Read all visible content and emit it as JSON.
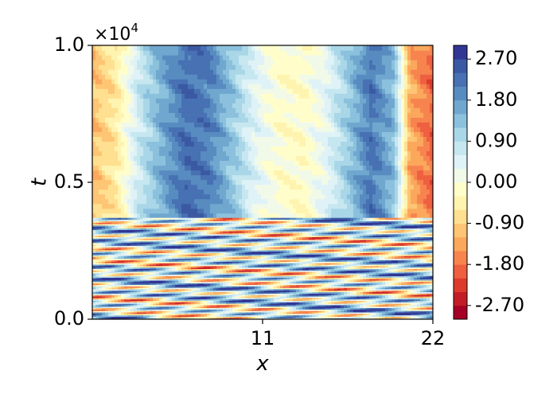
{
  "chart_data": {
    "type": "heatmap",
    "title": "",
    "xlabel": "x",
    "ylabel": "t",
    "xlim": [
      0,
      22
    ],
    "ylim": [
      0,
      10000
    ],
    "x_ticks": [
      {
        "value": 11,
        "label": "11"
      },
      {
        "value": 22,
        "label": "22"
      }
    ],
    "y_ticks": [
      {
        "value": 0.0,
        "label": "0.0"
      },
      {
        "value": 0.5,
        "label": "0.5"
      },
      {
        "value": 1.0,
        "label": "1.0"
      }
    ],
    "y_multiplier": {
      "base": "×10",
      "exponent": "4"
    },
    "transition_t": 3700,
    "colorbar": {
      "colormap": "RdYlBu",
      "vmin": -3.0,
      "vmax": 3.0,
      "levels": 20,
      "ticks": [
        {
          "value": 2.7,
          "label": "2.70"
        },
        {
          "value": 1.8,
          "label": "1.80"
        },
        {
          "value": 0.9,
          "label": "0.90"
        },
        {
          "value": 0.0,
          "label": "0.00"
        },
        {
          "value": -0.9,
          "label": "-0.90"
        },
        {
          "value": -1.8,
          "label": "-1.80"
        },
        {
          "value": -2.7,
          "label": "-2.70"
        }
      ]
    },
    "stationary_profile": {
      "x": [
        0,
        1.5,
        3,
        4.5,
        6,
        7.5,
        9,
        10.5,
        12,
        13.5,
        15,
        16.5,
        18,
        19.5,
        20.5,
        22
      ],
      "u": [
        -1.1,
        -0.6,
        0.7,
        1.6,
        2.3,
        2.1,
        1.3,
        0.4,
        -0.1,
        -0.2,
        0.3,
        1.2,
        2.2,
        1.4,
        -1.3,
        -1.9
      ]
    }
  }
}
